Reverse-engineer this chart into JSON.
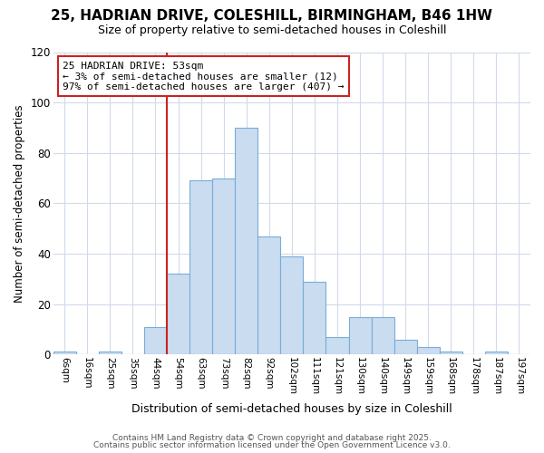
{
  "title_line1": "25, HADRIAN DRIVE, COLESHILL, BIRMINGHAM, B46 1HW",
  "title_line2": "Size of property relative to semi-detached houses in Coleshill",
  "xlabel": "Distribution of semi-detached houses by size in Coleshill",
  "ylabel": "Number of semi-detached properties",
  "bin_labels": [
    "6sqm",
    "16sqm",
    "25sqm",
    "35sqm",
    "44sqm",
    "54sqm",
    "63sqm",
    "73sqm",
    "82sqm",
    "92sqm",
    "102sqm",
    "111sqm",
    "121sqm",
    "130sqm",
    "140sqm",
    "149sqm",
    "159sqm",
    "168sqm",
    "178sqm",
    "187sqm",
    "197sqm"
  ],
  "bar_heights": [
    1,
    0,
    1,
    0,
    11,
    32,
    69,
    70,
    90,
    47,
    39,
    29,
    7,
    15,
    15,
    6,
    3,
    1,
    0,
    1,
    0
  ],
  "bar_color": "#c9dcf0",
  "bar_edge_color": "#7aadd6",
  "vline_x_index": 5,
  "vline_color": "#cc2222",
  "annotation_text": "25 HADRIAN DRIVE: 53sqm\n← 3% of semi-detached houses are smaller (12)\n97% of semi-detached houses are larger (407) →",
  "annotation_box_facecolor": "#ffffff",
  "annotation_box_edgecolor": "#cc2222",
  "ylim": [
    0,
    120
  ],
  "yticks": [
    0,
    20,
    40,
    60,
    80,
    100,
    120
  ],
  "footer_line1": "Contains HM Land Registry data © Crown copyright and database right 2025.",
  "footer_line2": "Contains public sector information licensed under the Open Government Licence v3.0.",
  "bg_color": "#ffffff",
  "plot_bg_color": "#ffffff",
  "grid_color": "#d0daea",
  "title_fontsize": 11,
  "subtitle_fontsize": 9
}
